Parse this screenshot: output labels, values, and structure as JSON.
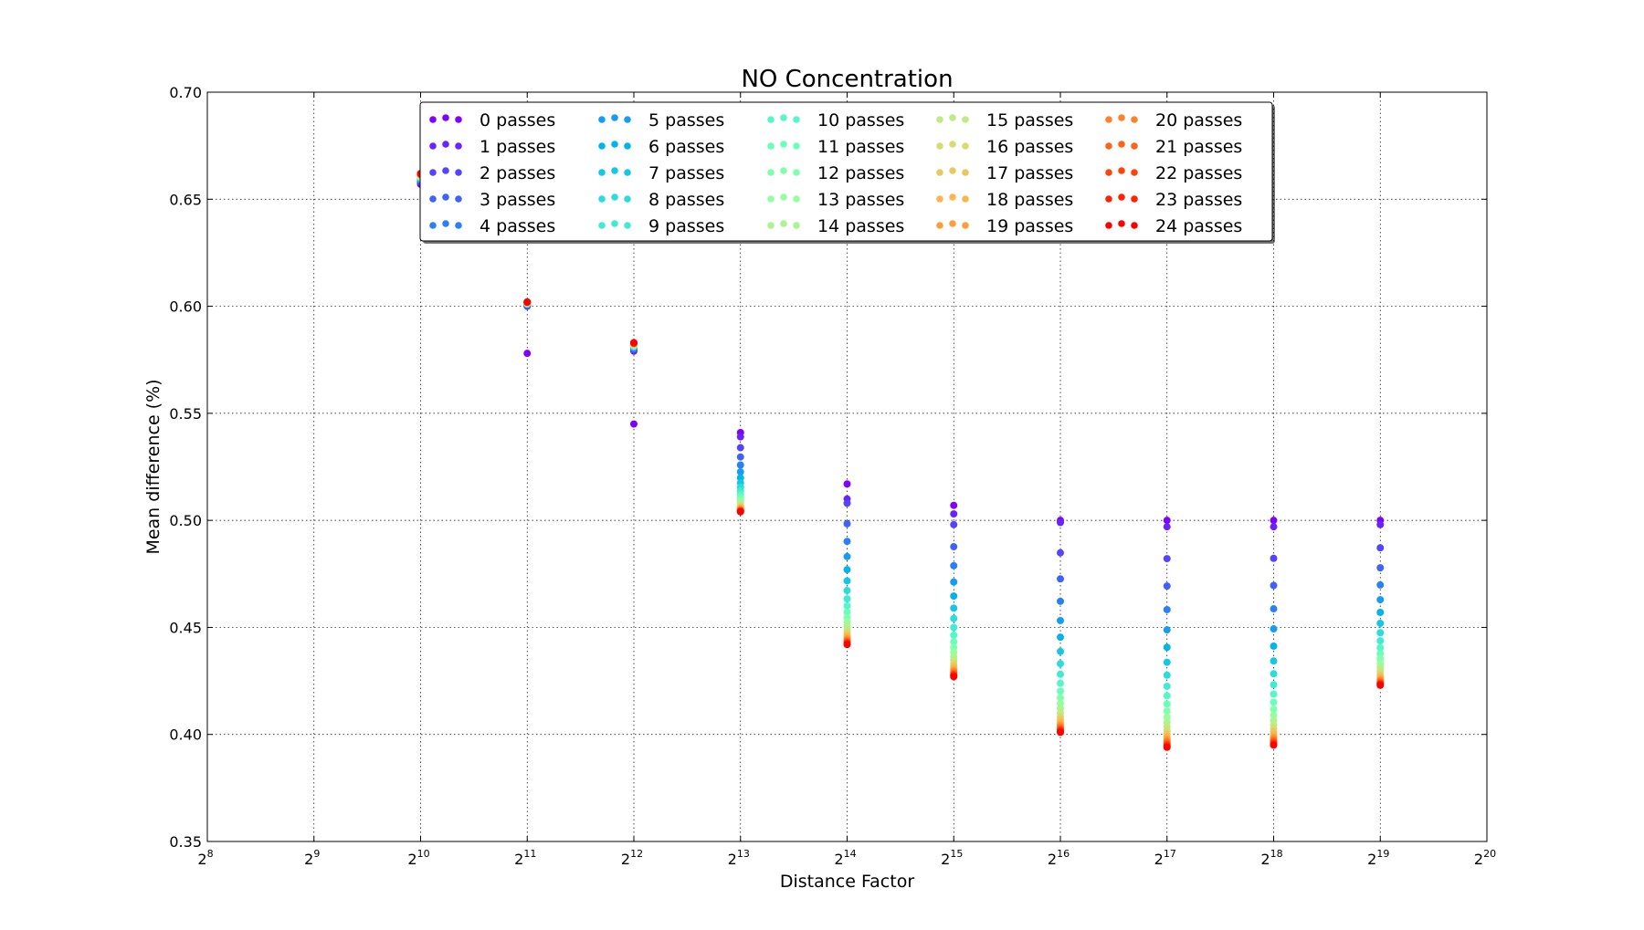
{
  "chart_data": {
    "type": "scatter",
    "title": "NO Concentration",
    "xlabel": "Distance Factor",
    "ylabel": "Mean difference (%)",
    "x_scale": "log2",
    "xlim_exponent": [
      8,
      20
    ],
    "x_tick_base": "2",
    "x_tick_exponents": [
      "8",
      "9",
      "10",
      "11",
      "12",
      "13",
      "14",
      "15",
      "16",
      "17",
      "18",
      "19",
      "20"
    ],
    "ylim": [
      0.35,
      0.7
    ],
    "y_ticks": [
      "0.35",
      "0.40",
      "0.45",
      "0.50",
      "0.55",
      "0.60",
      "0.65",
      "0.70"
    ],
    "grid": true,
    "legend_location": "upper-center",
    "legend_columns": 5,
    "series_names": [
      "0 passes",
      "1 passes",
      "2 passes",
      "3 passes",
      "4 passes",
      "5 passes",
      "6 passes",
      "7 passes",
      "8 passes",
      "9 passes",
      "10 passes",
      "11 passes",
      "12 passes",
      "13 passes",
      "14 passes",
      "15 passes",
      "16 passes",
      "17 passes",
      "18 passes",
      "19 passes",
      "20 passes",
      "21 passes",
      "22 passes",
      "23 passes",
      "24 passes"
    ],
    "series_colors": [
      "#8000ff",
      "#6a23fe",
      "#5544fd",
      "#3f63fa",
      "#2981f7",
      "#149df2",
      "#00b5eb",
      "#13c8e3",
      "#2adddd",
      "#3febd2",
      "#55f7c7",
      "#6afebb",
      "#80ffad",
      "#95fea0",
      "#aaf590",
      "#bfeb81",
      "#d5dd71",
      "#eac85f",
      "#ffb54e",
      "#ff9d3d",
      "#ff812a",
      "#ff6318",
      "#ff4406",
      "#ff2200",
      "#ff0000"
    ],
    "x_exponents": [
      10,
      11,
      12,
      13,
      14,
      15,
      16,
      17,
      18,
      19
    ],
    "column_values": [
      {
        "exponent": 10,
        "min": 0.657,
        "max": 0.662,
        "first_values": [
          0.657
        ],
        "step_mode": "equal"
      },
      {
        "exponent": 11,
        "min": 0.578,
        "max": 0.602,
        "first_values": [
          0.578,
          0.6
        ],
        "step_mode": "equal"
      },
      {
        "exponent": 12,
        "min": 0.545,
        "max": 0.583,
        "first_values": [
          0.545,
          0.579
        ],
        "step_mode": "equal"
      },
      {
        "exponent": 13,
        "min": 0.504,
        "max": 0.541,
        "first_values": [
          0.541,
          0.539
        ],
        "step_mode": "geometric"
      },
      {
        "exponent": 14,
        "min": 0.442,
        "max": 0.517,
        "first_values": [
          0.517,
          0.51,
          0.508
        ],
        "step_mode": "geometric"
      },
      {
        "exponent": 15,
        "min": 0.427,
        "max": 0.507,
        "first_values": [
          0.507,
          0.503,
          0.498
        ],
        "step_mode": "geometric"
      },
      {
        "exponent": 16,
        "min": 0.401,
        "max": 0.5,
        "first_values": [
          0.5,
          0.499
        ],
        "step_mode": "geometric"
      },
      {
        "exponent": 17,
        "min": 0.394,
        "max": 0.5,
        "first_values": [
          0.5,
          0.497
        ],
        "step_mode": "geometric"
      },
      {
        "exponent": 18,
        "min": 0.395,
        "max": 0.5,
        "first_values": [
          0.5,
          0.497
        ],
        "step_mode": "geometric"
      },
      {
        "exponent": 19,
        "min": 0.423,
        "max": 0.5,
        "first_values": [
          0.5,
          0.498
        ],
        "step_mode": "geometric"
      }
    ]
  }
}
